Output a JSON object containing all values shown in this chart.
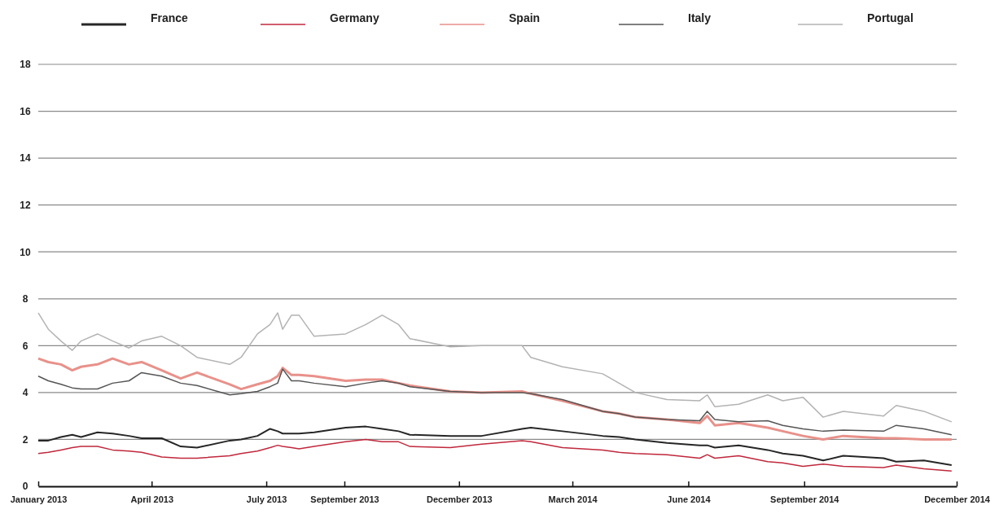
{
  "chart_data": {
    "type": "line",
    "legend": "top",
    "grid": "y",
    "marker": "none",
    "line_style": "solid",
    "x": [
      "2013-01-01",
      "2013-01-09",
      "2013-01-19",
      "2013-01-28",
      "2013-02-04",
      "2013-02-17",
      "2013-03-01",
      "2013-03-14",
      "2013-03-24",
      "2013-04-09",
      "2013-04-24",
      "2013-05-07",
      "2013-06-02",
      "2013-06-11",
      "2013-06-24",
      "2013-07-04",
      "2013-07-10",
      "2013-07-14",
      "2013-07-21",
      "2013-07-27",
      "2013-08-08",
      "2013-09-02",
      "2013-09-18",
      "2013-10-01",
      "2013-10-14",
      "2013-10-23",
      "2013-11-24",
      "2013-12-19",
      "2014-01-20",
      "2014-01-27",
      "2014-02-21",
      "2014-03-25",
      "2014-04-07",
      "2014-04-20",
      "2014-05-15",
      "2014-06-10",
      "2014-06-16",
      "2014-06-22",
      "2014-07-11",
      "2014-08-03",
      "2014-08-15",
      "2014-08-31",
      "2014-09-16",
      "2014-10-02",
      "2014-11-03",
      "2014-11-13",
      "2014-12-05",
      "2014-12-27"
    ],
    "xlim": [
      "2013-01-01",
      "2014-12-31"
    ],
    "xticks": [
      {
        "value": "2013-01-01",
        "label": "January 2013"
      },
      {
        "value": "2013-04-01",
        "label": "April 2013"
      },
      {
        "value": "2013-07-01",
        "label": "July 2013"
      },
      {
        "value": "2013-09-01",
        "label": "September 2013"
      },
      {
        "value": "2013-12-01",
        "label": "December 2013"
      },
      {
        "value": "2014-03-01",
        "label": "March 2014"
      },
      {
        "value": "2014-06-01",
        "label": "June 2014"
      },
      {
        "value": "2014-09-01",
        "label": "September 2014"
      },
      {
        "value": "2014-12-31",
        "label": "December 2014"
      }
    ],
    "ylim": [
      0,
      18
    ],
    "yticks": [
      0,
      2,
      4,
      6,
      8,
      10,
      12,
      14,
      16,
      18
    ],
    "series": [
      {
        "name": "France",
        "color": "#262626",
        "values": [
          1.95,
          1.95,
          2.1,
          2.2,
          2.1,
          2.3,
          2.25,
          2.15,
          2.05,
          2.05,
          1.7,
          1.65,
          1.95,
          2.0,
          2.15,
          2.45,
          2.35,
          2.25,
          2.25,
          2.25,
          2.3,
          2.5,
          2.55,
          2.45,
          2.35,
          2.2,
          2.15,
          2.15,
          2.45,
          2.5,
          2.35,
          2.15,
          2.1,
          2.0,
          1.85,
          1.75,
          1.75,
          1.65,
          1.75,
          1.55,
          1.4,
          1.3,
          1.1,
          1.3,
          1.2,
          1.05,
          1.1,
          0.9
        ]
      },
      {
        "name": "Germany",
        "color": "#c0283c",
        "values": [
          1.4,
          1.45,
          1.55,
          1.65,
          1.7,
          1.7,
          1.55,
          1.5,
          1.45,
          1.25,
          1.2,
          1.2,
          1.3,
          1.4,
          1.5,
          1.65,
          1.75,
          1.7,
          1.65,
          1.6,
          1.7,
          1.9,
          2.0,
          1.9,
          1.9,
          1.7,
          1.65,
          1.8,
          1.95,
          1.9,
          1.65,
          1.55,
          1.45,
          1.4,
          1.35,
          1.2,
          1.35,
          1.2,
          1.3,
          1.05,
          1.0,
          0.85,
          0.95,
          0.85,
          0.8,
          0.9,
          0.75,
          0.65
        ]
      },
      {
        "name": "Spain",
        "color": "#e8918a",
        "values": [
          5.45,
          5.3,
          5.2,
          4.95,
          5.1,
          5.2,
          5.45,
          5.2,
          5.3,
          4.95,
          4.6,
          4.85,
          4.35,
          4.15,
          4.35,
          4.5,
          4.7,
          5.05,
          4.75,
          4.75,
          4.7,
          4.5,
          4.55,
          4.55,
          4.4,
          4.3,
          4.05,
          4.0,
          4.05,
          3.95,
          3.65,
          3.2,
          3.1,
          2.95,
          2.85,
          2.7,
          3.0,
          2.6,
          2.7,
          2.5,
          2.35,
          2.15,
          2.0,
          2.15,
          2.05,
          2.05,
          2.0,
          2.0
        ]
      },
      {
        "name": "Italy",
        "color": "#555555",
        "values": [
          4.7,
          4.5,
          4.35,
          4.2,
          4.15,
          4.15,
          4.4,
          4.5,
          4.85,
          4.7,
          4.4,
          4.3,
          3.9,
          3.95,
          4.05,
          4.25,
          4.4,
          5.0,
          4.5,
          4.5,
          4.4,
          4.25,
          4.4,
          4.5,
          4.4,
          4.25,
          4.05,
          4.0,
          4.0,
          3.95,
          3.7,
          3.2,
          3.1,
          2.95,
          2.85,
          2.8,
          3.2,
          2.85,
          2.75,
          2.8,
          2.6,
          2.45,
          2.35,
          2.4,
          2.35,
          2.6,
          2.45,
          2.2
        ]
      },
      {
        "name": "Portugal",
        "color": "#b3b3b3",
        "values": [
          7.4,
          6.7,
          6.2,
          5.8,
          6.2,
          6.5,
          6.2,
          5.9,
          6.2,
          6.4,
          6.0,
          5.5,
          5.2,
          5.5,
          6.5,
          6.9,
          7.4,
          6.7,
          7.3,
          7.3,
          6.4,
          6.5,
          6.9,
          7.3,
          6.9,
          6.3,
          5.95,
          6.0,
          6.0,
          5.5,
          5.1,
          4.8,
          4.4,
          4.0,
          3.7,
          3.65,
          3.9,
          3.4,
          3.5,
          3.9,
          3.65,
          3.8,
          2.95,
          3.2,
          3.0,
          3.45,
          3.2,
          2.75
        ]
      }
    ]
  }
}
